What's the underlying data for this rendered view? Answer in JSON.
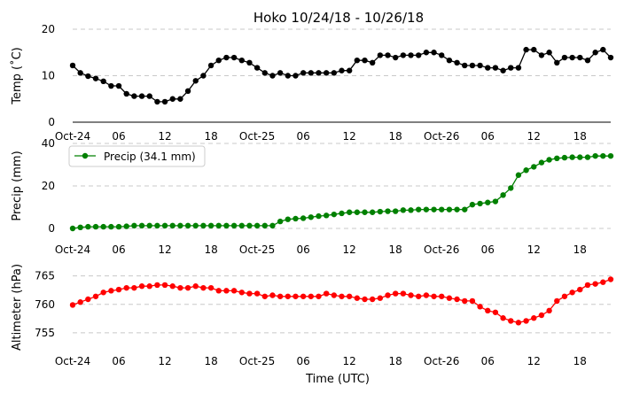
{
  "title": "Hoko 10/24/18 - 10/26/18",
  "xlabel": "Time (UTC)",
  "x_tick_labels": [
    "Oct-24",
    "06",
    "12",
    "18",
    "Oct-25",
    "06",
    "12",
    "18",
    "Oct-26",
    "06",
    "12",
    "18"
  ],
  "x_tick_hours": [
    0,
    6,
    12,
    18,
    24,
    30,
    36,
    42,
    48,
    54,
    60,
    66
  ],
  "x_range_hours": [
    0,
    70
  ],
  "chart_data": [
    {
      "type": "line",
      "ylabel": "Temp (˚C)",
      "ylim": [
        0,
        20
      ],
      "yticks": [
        0,
        10,
        20
      ],
      "grid": true,
      "color": "#000000",
      "x_hours": [
        0,
        1,
        2,
        3,
        4,
        5,
        6,
        7,
        8,
        9,
        10,
        11,
        12,
        13,
        14,
        15,
        16,
        17,
        18,
        19,
        20,
        21,
        22,
        23,
        24,
        25,
        26,
        27,
        28,
        29,
        30,
        31,
        32,
        33,
        34,
        35,
        36,
        37,
        38,
        39,
        40,
        41,
        42,
        43,
        44,
        45,
        46,
        47,
        48,
        49,
        50,
        51,
        52,
        53,
        54,
        55,
        56,
        57,
        58,
        59,
        60,
        61,
        62,
        63,
        64,
        65,
        66,
        67,
        68,
        69,
        70
      ],
      "values": [
        12.2,
        10.6,
        9.9,
        9.4,
        8.8,
        7.8,
        7.8,
        6.1,
        5.6,
        5.6,
        5.6,
        4.4,
        4.4,
        5,
        5,
        6.7,
        8.9,
        10,
        12.2,
        13.3,
        13.9,
        13.9,
        13.3,
        12.8,
        11.7,
        10.6,
        10,
        10.6,
        10,
        10,
        10.6,
        10.6,
        10.6,
        10.6,
        10.6,
        11.1,
        11.1,
        13.3,
        13.3,
        12.8,
        14.4,
        14.4,
        13.9,
        14.4,
        14.4,
        14.4,
        15,
        15,
        14.4,
        13.3,
        12.8,
        12.2,
        12.2,
        12.2,
        11.7,
        11.7,
        11.1,
        11.7,
        11.7,
        15.6,
        15.6,
        14.4,
        15,
        12.8,
        13.9,
        13.9,
        13.9,
        13.3,
        15,
        15.6,
        13.9
      ]
    },
    {
      "type": "line",
      "ylabel": "Precip (mm)",
      "ylim": [
        0,
        40
      ],
      "yticks": [
        0,
        20,
        40
      ],
      "grid": true,
      "color": "#008000",
      "legend": "Precip (34.1 mm)",
      "legend_position": "upper-left",
      "x_hours": [
        0,
        1,
        2,
        3,
        4,
        5,
        6,
        7,
        8,
        9,
        10,
        11,
        12,
        13,
        14,
        15,
        16,
        17,
        18,
        19,
        20,
        21,
        22,
        23,
        24,
        25,
        26,
        27,
        28,
        29,
        30,
        31,
        32,
        33,
        34,
        35,
        36,
        37,
        38,
        39,
        40,
        41,
        42,
        43,
        44,
        45,
        46,
        47,
        48,
        49,
        50,
        51,
        52,
        53,
        54,
        55,
        56,
        57,
        58,
        59,
        60,
        61,
        62,
        63,
        64,
        65,
        66,
        67,
        68,
        69,
        70
      ],
      "values": [
        0,
        0.5,
        0.8,
        0.8,
        0.8,
        0.8,
        0.8,
        1,
        1.3,
        1.3,
        1.3,
        1.3,
        1.3,
        1.3,
        1.3,
        1.3,
        1.3,
        1.3,
        1.3,
        1.3,
        1.3,
        1.3,
        1.3,
        1.3,
        1.3,
        1.3,
        1.3,
        3.3,
        4.3,
        4.6,
        4.8,
        5.3,
        5.8,
        6.1,
        6.6,
        7.1,
        7.6,
        7.6,
        7.6,
        7.6,
        7.9,
        8.1,
        8.1,
        8.6,
        8.6,
        8.9,
        8.9,
        8.9,
        8.9,
        8.9,
        8.9,
        8.9,
        11.2,
        11.7,
        12.2,
        12.7,
        15.7,
        19,
        25.1,
        27.4,
        29,
        31,
        32.3,
        33,
        33.3,
        33.5,
        33.5,
        33.5,
        34.1,
        34.1,
        34.1
      ]
    },
    {
      "type": "line",
      "ylabel": "Altimeter (hPa)",
      "ylim": [
        752.5,
        766.5
      ],
      "yticks": [
        755,
        760,
        765
      ],
      "grid": true,
      "color": "#ff0000",
      "x_hours": [
        0,
        1,
        2,
        3,
        4,
        5,
        6,
        7,
        8,
        9,
        10,
        11,
        12,
        13,
        14,
        15,
        16,
        17,
        18,
        19,
        20,
        21,
        22,
        23,
        24,
        25,
        26,
        27,
        28,
        29,
        30,
        31,
        32,
        33,
        34,
        35,
        36,
        37,
        38,
        39,
        40,
        41,
        42,
        43,
        44,
        45,
        46,
        47,
        48,
        49,
        50,
        51,
        52,
        53,
        54,
        55,
        56,
        57,
        58,
        59,
        60,
        61,
        62,
        63,
        64,
        65,
        66,
        67,
        68,
        69,
        70
      ],
      "values": [
        759.9,
        760.4,
        760.9,
        761.4,
        762.1,
        762.4,
        762.6,
        762.9,
        762.9,
        763.2,
        763.2,
        763.4,
        763.4,
        763.2,
        762.9,
        762.9,
        763.2,
        762.9,
        762.9,
        762.4,
        762.4,
        762.4,
        762.1,
        761.9,
        761.9,
        761.4,
        761.6,
        761.4,
        761.4,
        761.4,
        761.4,
        761.4,
        761.4,
        761.9,
        761.6,
        761.4,
        761.4,
        761.1,
        760.9,
        760.9,
        761.1,
        761.6,
        761.9,
        761.9,
        761.6,
        761.4,
        761.6,
        761.4,
        761.4,
        761.1,
        760.9,
        760.6,
        760.6,
        759.6,
        758.9,
        758.6,
        757.6,
        757.1,
        756.8,
        757.1,
        757.6,
        758.1,
        758.9,
        760.6,
        761.4,
        762.1,
        762.6,
        763.4,
        763.6,
        763.9,
        764.4
      ]
    }
  ]
}
